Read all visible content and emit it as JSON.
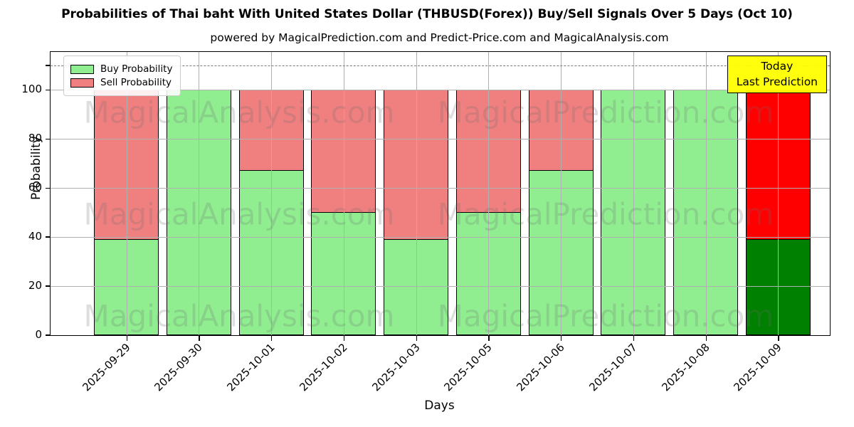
{
  "header": {
    "title": "Probabilities of Thai baht With United States Dollar (THBUSD(Forex)) Buy/Sell Signals Over 5 Days (Oct 10)",
    "subtitle": "powered by MagicalPrediction.com and Predict-Price.com and MagicalAnalysis.com"
  },
  "chart_data": {
    "type": "bar",
    "stacked": true,
    "title": "Probabilities of Thai baht With United States Dollar (THBUSD(Forex)) Buy/Sell Signals Over 5 Days (Oct 10)",
    "xlabel": "Days",
    "ylabel": "Probability",
    "categories": [
      "2025-09-29",
      "2025-09-30",
      "2025-10-01",
      "2025-10-02",
      "2025-10-03",
      "2025-10-05",
      "2025-10-06",
      "2025-10-07",
      "2025-10-08",
      "2025-10-09"
    ],
    "series": [
      {
        "name": "Buy Probability",
        "color": "#90EE90",
        "values": [
          39,
          100,
          67,
          50,
          39,
          50,
          67,
          100,
          100,
          39
        ]
      },
      {
        "name": "Sell Probability",
        "color": "#F08080",
        "values": [
          61,
          0,
          33,
          50,
          61,
          50,
          33,
          0,
          0,
          61
        ]
      }
    ],
    "today_index": 9,
    "today_colors": {
      "buy": "#008000",
      "sell": "#FF0000"
    },
    "bar_edge_color": "#000000",
    "yticks": [
      0,
      20,
      40,
      60,
      80,
      100
    ],
    "extra_tick": 110,
    "ylim": [
      0,
      115.5
    ],
    "dashed_line_y": 110,
    "grid": true,
    "grid_color": "#b0b0b0",
    "legend_position": "upper-left"
  },
  "annotation": {
    "line1": "Today",
    "line2": "Last Prediction",
    "bg_color": "#FFFF00"
  },
  "watermarks": {
    "left_text": "MagicalAnalysis.com",
    "right_text": "MagicalPrediction.com"
  }
}
